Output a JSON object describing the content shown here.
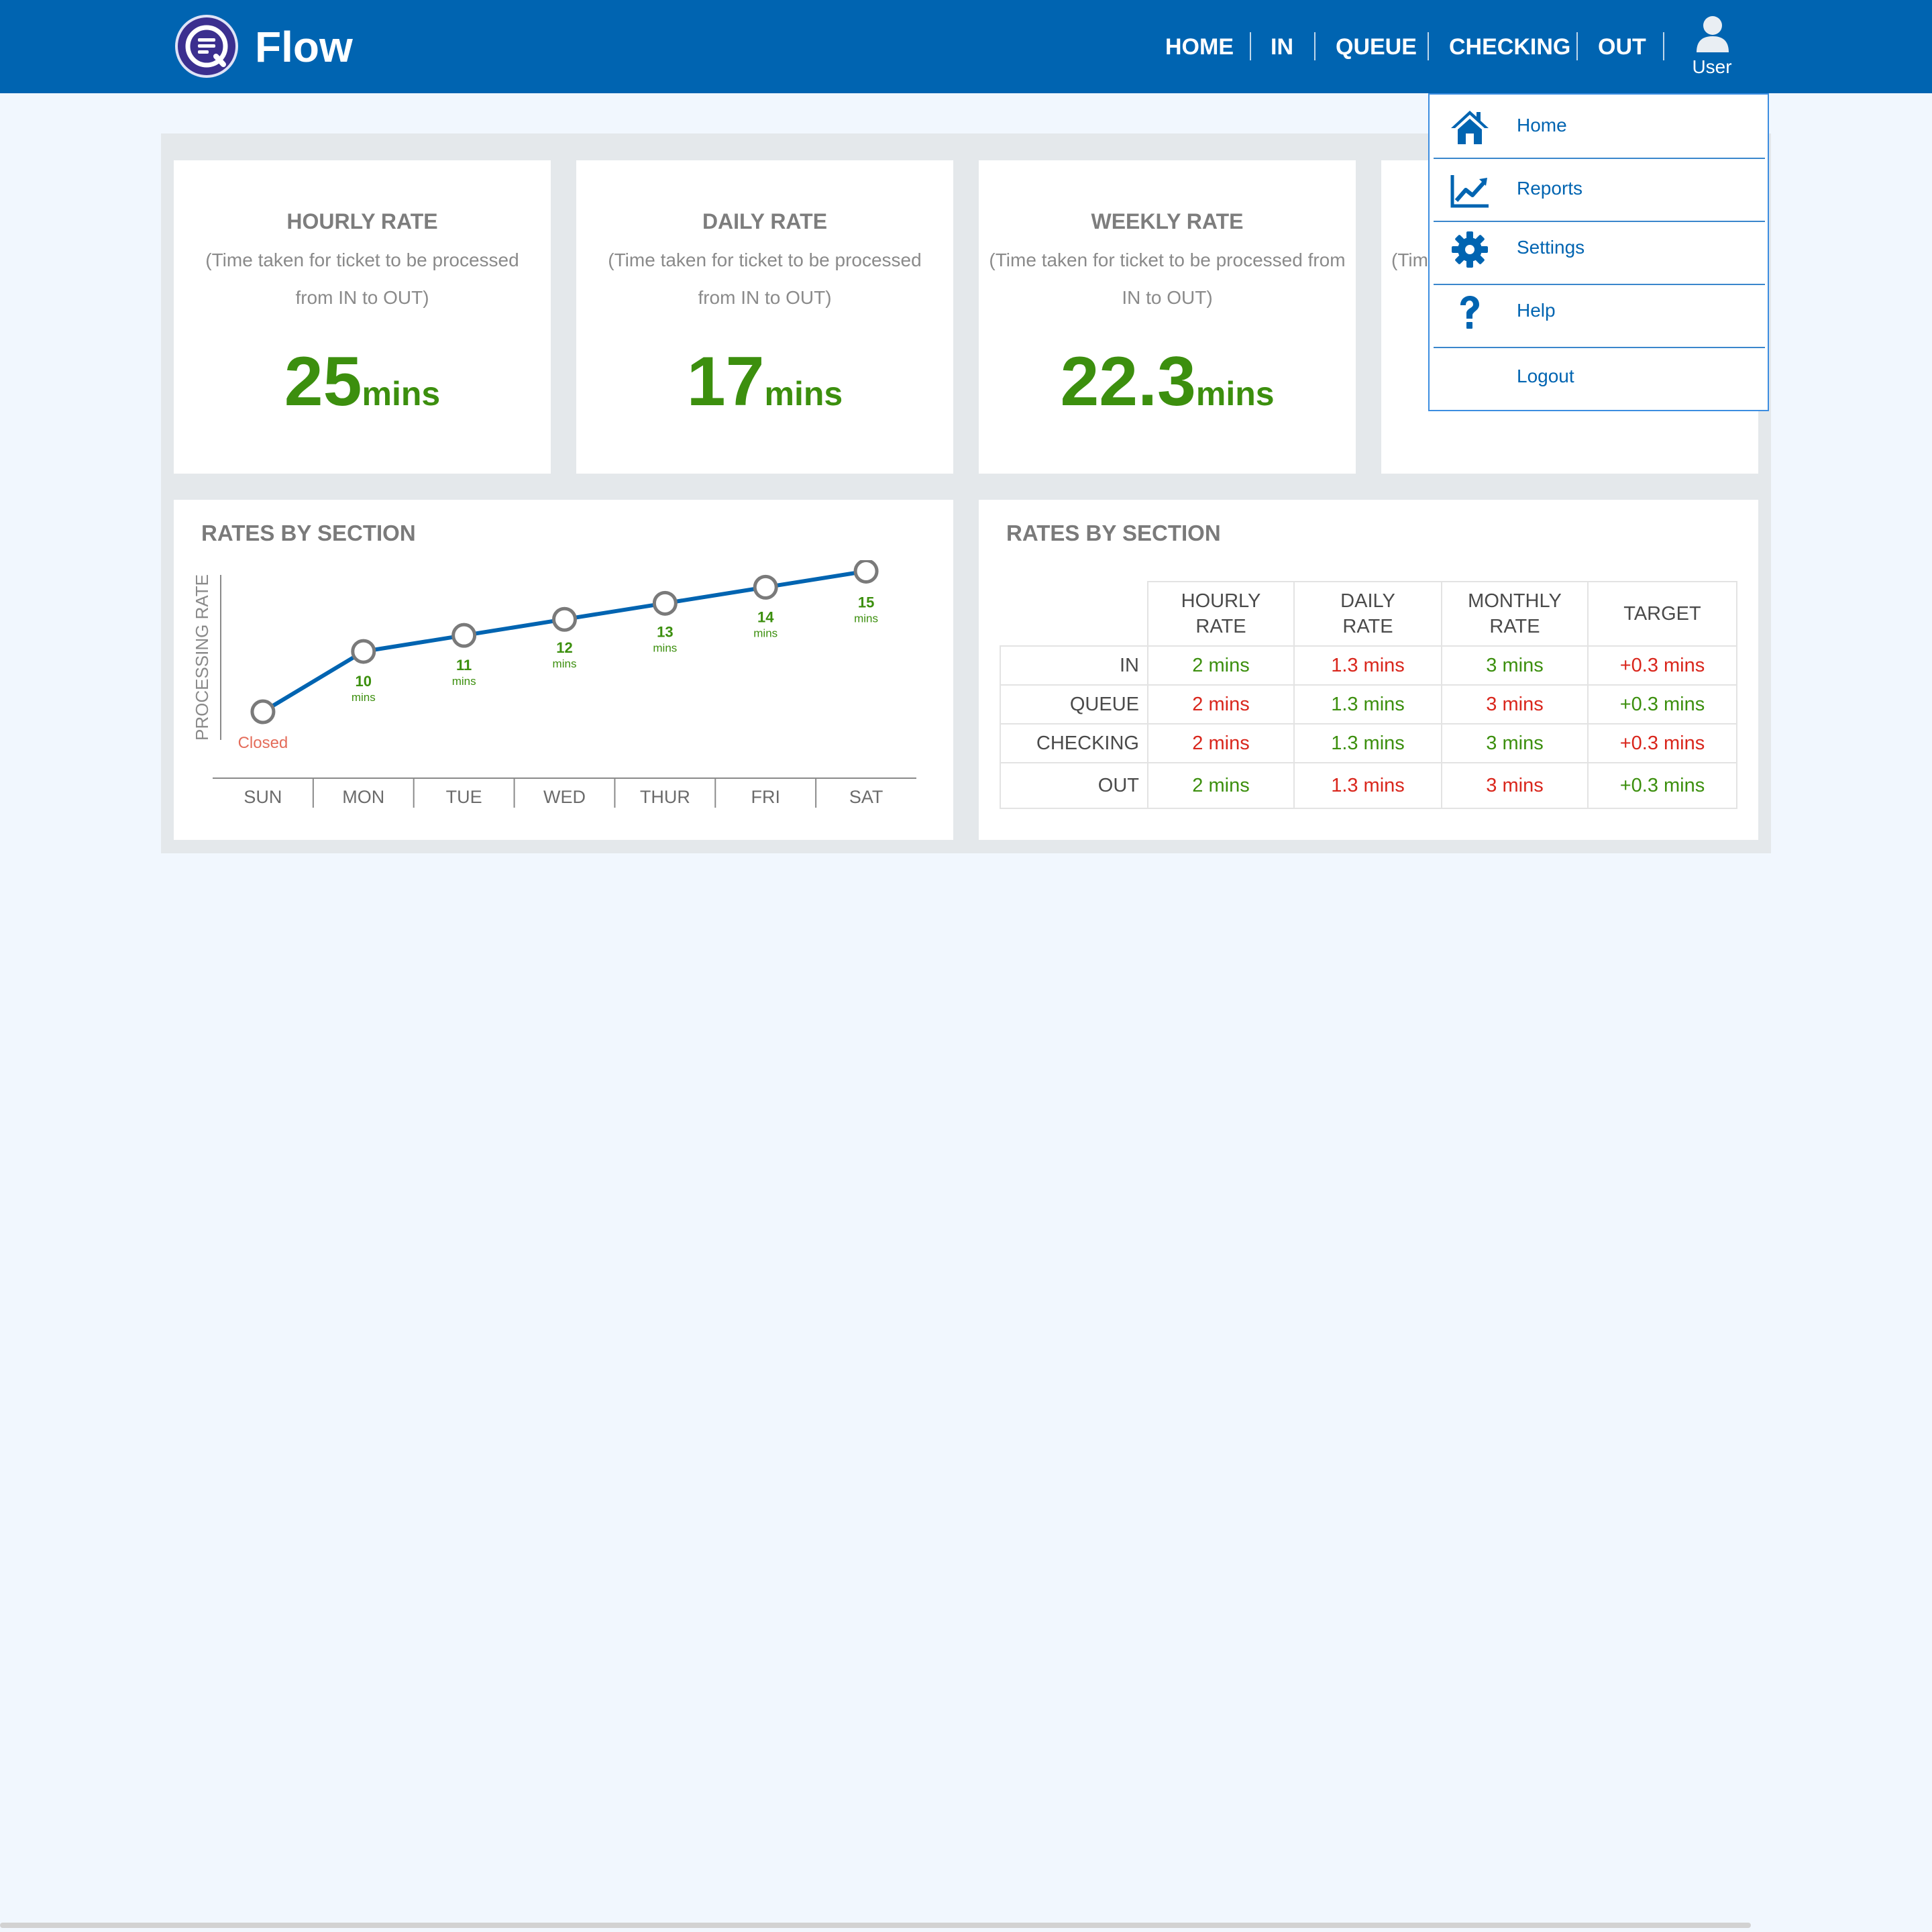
{
  "app": {
    "brand": "Flow"
  },
  "nav": {
    "items": [
      {
        "label": "HOME"
      },
      {
        "label": "IN"
      },
      {
        "label": "QUEUE"
      },
      {
        "label": "CHECKING"
      },
      {
        "label": "OUT"
      }
    ],
    "user_label": "User"
  },
  "cards": [
    {
      "title": "HOURLY RATE",
      "desc": "(Time taken for ticket to be processed from  IN to OUT)",
      "value": "25",
      "unit": "mins"
    },
    {
      "title": "DAILY RATE",
      "desc": "(Time taken for ticket to be processed from  IN to OUT)",
      "value": "17",
      "unit": "mins"
    },
    {
      "title": "WEEKLY RATE",
      "desc": "(Time taken for ticket to be processed from IN to OUT)",
      "value": "22.3",
      "unit": "mins"
    },
    {
      "desc_partial": "(Tim"
    }
  ],
  "chart_panel": {
    "title": "RATES BY SECTION"
  },
  "chart_data": {
    "type": "line",
    "ylabel": "PROCESSING RATE",
    "categories": [
      "SUN",
      "MON",
      "TUE",
      "WED",
      "THUR",
      "FRI",
      "SAT"
    ],
    "series": [
      {
        "values": [
          null,
          10,
          11,
          12,
          13,
          14,
          15
        ],
        "labels": [
          "Closed",
          "10",
          "11",
          "12",
          "13",
          "14",
          "15"
        ],
        "unit": "mins"
      }
    ],
    "line_color": "#0064b1",
    "label_color": "#3c8f0e",
    "closed_color": "#e46c5a"
  },
  "table_panel": {
    "title": "RATES BY SECTION",
    "headers": [
      {
        "line1": "HOURLY",
        "line2": "RATE"
      },
      {
        "line1": "DAILY",
        "line2": "RATE"
      },
      {
        "line1": "MONTHLY",
        "line2": "RATE"
      },
      {
        "line1": "TARGET",
        "line2": ""
      }
    ],
    "rows": [
      {
        "label": "IN",
        "cells": [
          {
            "text": "2 mins",
            "status": "good"
          },
          {
            "text": "1.3 mins",
            "status": "bad"
          },
          {
            "text": "3 mins",
            "status": "good"
          },
          {
            "text": "+0.3 mins",
            "status": "bad"
          }
        ]
      },
      {
        "label": "QUEUE",
        "cells": [
          {
            "text": "2 mins",
            "status": "bad"
          },
          {
            "text": "1.3 mins",
            "status": "good"
          },
          {
            "text": "3 mins",
            "status": "bad"
          },
          {
            "text": "+0.3 mins",
            "status": "good"
          }
        ]
      },
      {
        "label": "CHECKING",
        "cells": [
          {
            "text": "2 mins",
            "status": "bad"
          },
          {
            "text": "1.3 mins",
            "status": "good"
          },
          {
            "text": "3 mins",
            "status": "good"
          },
          {
            "text": "+0.3 mins",
            "status": "bad"
          }
        ]
      },
      {
        "label": "OUT",
        "cells": [
          {
            "text": "2 mins",
            "status": "good"
          },
          {
            "text": "1.3 mins",
            "status": "bad"
          },
          {
            "text": "3 mins",
            "status": "bad"
          },
          {
            "text": "+0.3 mins",
            "status": "good"
          }
        ]
      }
    ]
  },
  "dropdown": {
    "items": [
      {
        "label": "Home",
        "icon": "home-icon"
      },
      {
        "label": "Reports",
        "icon": "chart-icon"
      },
      {
        "label": "Settings",
        "icon": "gear-icon"
      },
      {
        "label": "Help",
        "icon": "question-icon"
      },
      {
        "label": "Logout",
        "icon": ""
      }
    ]
  },
  "colors": {
    "topbar": "#0064b1",
    "good": "#3c8f0e",
    "bad": "#d9261c",
    "page_bg": "#f1f7fe"
  }
}
